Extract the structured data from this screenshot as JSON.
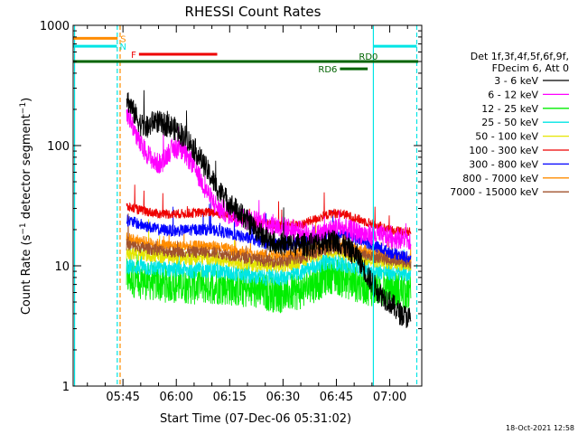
{
  "chart_data": {
    "type": "line",
    "title": "RHESSI Count Rates",
    "xlabel": "Start Time (07-Dec-06 05:31:02)",
    "ylabel_main": "Count Rate (s",
    "ylabel_sup1": "−1",
    "ylabel_mid": " detector segment",
    "ylabel_sup2": "−1",
    "ylabel_end": ")",
    "xlim_minutes": [
      331.0,
      429.0
    ],
    "ylim": [
      1,
      1000
    ],
    "yscale": "log",
    "x_ticks": [
      {
        "minute": 345,
        "label": "05:45"
      },
      {
        "minute": 360,
        "label": "06:00"
      },
      {
        "minute": 375,
        "label": "06:15"
      },
      {
        "minute": 390,
        "label": "06:30"
      },
      {
        "minute": 405,
        "label": "06:45"
      },
      {
        "minute": 420,
        "label": "07:00"
      }
    ],
    "y_ticks": [
      {
        "value": 1,
        "label": "1"
      },
      {
        "value": 10,
        "label": "10"
      },
      {
        "value": 100,
        "label": "100"
      },
      {
        "value": 1000,
        "label": "1000"
      }
    ],
    "legend": {
      "placement": "right",
      "header": [
        "Det 1f,3f,4f,5f,6f,9f,",
        "FDecim 6, Att 0"
      ],
      "entries": [
        {
          "label": "3 - 6 keV",
          "color": "#000000"
        },
        {
          "label": "6 - 12 keV",
          "color": "#ff00ff"
        },
        {
          "label": "12 - 25 keV",
          "color": "#00ee00"
        },
        {
          "label": "25 - 50 keV",
          "color": "#00e5e5"
        },
        {
          "label": "50 - 100 keV",
          "color": "#e5e500"
        },
        {
          "label": "100 - 300 keV",
          "color": "#ee0000"
        },
        {
          "label": "300 - 800 keV",
          "color": "#0000ff"
        },
        {
          "label": "800 - 7000 keV",
          "color": "#ff8c00"
        },
        {
          "label": "7000 - 15000 keV",
          "color": "#a0522d"
        }
      ]
    },
    "series": [
      {
        "name": "3 - 6 keV",
        "color": "#000000",
        "noise": 0.1,
        "points": [
          [
            346,
            250
          ],
          [
            348,
            190
          ],
          [
            350,
            150
          ],
          [
            352,
            140
          ],
          [
            354,
            165
          ],
          [
            356,
            150
          ],
          [
            358,
            148
          ],
          [
            360,
            135
          ],
          [
            363,
            115
          ],
          [
            366,
            85
          ],
          [
            369,
            60
          ],
          [
            372,
            42
          ],
          [
            375,
            33
          ],
          [
            378,
            27
          ],
          [
            381,
            22
          ],
          [
            384,
            18
          ],
          [
            387,
            16
          ],
          [
            390,
            15
          ],
          [
            393,
            15
          ],
          [
            396,
            15
          ],
          [
            399,
            15
          ],
          [
            402,
            16
          ],
          [
            405,
            16
          ],
          [
            408,
            14
          ],
          [
            411,
            12
          ],
          [
            414,
            8
          ],
          [
            417,
            6
          ],
          [
            420,
            5
          ],
          [
            423,
            4
          ],
          [
            426,
            3.6
          ]
        ]
      },
      {
        "name": "6 - 12 keV",
        "color": "#ff00ff",
        "noise": 0.09,
        "points": [
          [
            346,
            195
          ],
          [
            348,
            140
          ],
          [
            350,
            100
          ],
          [
            352,
            85
          ],
          [
            354,
            72
          ],
          [
            356,
            70
          ],
          [
            357,
            80
          ],
          [
            358,
            90
          ],
          [
            360,
            95
          ],
          [
            362,
            88
          ],
          [
            364,
            75
          ],
          [
            366,
            58
          ],
          [
            368,
            45
          ],
          [
            370,
            35
          ],
          [
            372,
            30
          ],
          [
            375,
            27
          ],
          [
            378,
            25
          ],
          [
            381,
            24
          ],
          [
            384,
            23
          ],
          [
            387,
            22
          ],
          [
            390,
            21
          ],
          [
            393,
            20
          ],
          [
            396,
            19
          ],
          [
            399,
            18
          ],
          [
            402,
            19
          ],
          [
            405,
            21
          ],
          [
            408,
            20
          ],
          [
            411,
            19
          ],
          [
            414,
            18
          ],
          [
            417,
            18
          ],
          [
            420,
            17
          ],
          [
            423,
            17
          ],
          [
            426,
            16.5
          ]
        ]
      },
      {
        "name": "12 - 25 keV",
        "color": "#00ee00",
        "noise": 0.16,
        "points": [
          [
            346,
            8.0
          ],
          [
            350,
            7.6
          ],
          [
            355,
            7.2
          ],
          [
            360,
            7.0
          ],
          [
            365,
            6.8
          ],
          [
            370,
            6.9
          ],
          [
            375,
            6.7
          ],
          [
            380,
            6.3
          ],
          [
            385,
            6.0
          ],
          [
            390,
            5.8
          ],
          [
            395,
            6.2
          ],
          [
            400,
            7.4
          ],
          [
            403,
            8.5
          ],
          [
            406,
            8.0
          ],
          [
            410,
            7.2
          ],
          [
            415,
            6.6
          ],
          [
            420,
            6.4
          ],
          [
            426,
            6.0
          ]
        ]
      },
      {
        "name": "25 - 50 keV",
        "color": "#00e5e5",
        "noise": 0.07,
        "points": [
          [
            346,
            10.0
          ],
          [
            350,
            9.7
          ],
          [
            355,
            9.5
          ],
          [
            360,
            9.3
          ],
          [
            365,
            9.2
          ],
          [
            370,
            9.3
          ],
          [
            375,
            8.8
          ],
          [
            380,
            8.3
          ],
          [
            385,
            8.0
          ],
          [
            390,
            8.0
          ],
          [
            395,
            8.8
          ],
          [
            400,
            10.2
          ],
          [
            403,
            11.0
          ],
          [
            406,
            10.5
          ],
          [
            410,
            9.8
          ],
          [
            415,
            9.2
          ],
          [
            420,
            8.8
          ],
          [
            426,
            8.5
          ]
        ]
      },
      {
        "name": "50 - 100 keV",
        "color": "#e5e500",
        "noise": 0.06,
        "points": [
          [
            346,
            13.0
          ],
          [
            350,
            12.5
          ],
          [
            355,
            12.0
          ],
          [
            360,
            11.7
          ],
          [
            365,
            11.6
          ],
          [
            370,
            11.7
          ],
          [
            375,
            11.0
          ],
          [
            380,
            10.4
          ],
          [
            385,
            10.0
          ],
          [
            390,
            10.0
          ],
          [
            395,
            11.0
          ],
          [
            400,
            12.5
          ],
          [
            403,
            13.4
          ],
          [
            406,
            12.8
          ],
          [
            410,
            12.0
          ],
          [
            415,
            11.2
          ],
          [
            420,
            10.6
          ],
          [
            426,
            10.2
          ]
        ]
      },
      {
        "name": "100 - 300 keV",
        "color": "#ee0000",
        "noise": 0.04,
        "points": [
          [
            346,
            31
          ],
          [
            350,
            29
          ],
          [
            355,
            27
          ],
          [
            360,
            27
          ],
          [
            365,
            27.5
          ],
          [
            370,
            28
          ],
          [
            375,
            26
          ],
          [
            380,
            24
          ],
          [
            385,
            22.5
          ],
          [
            390,
            21.5
          ],
          [
            395,
            22
          ],
          [
            400,
            25
          ],
          [
            404,
            27.5
          ],
          [
            407,
            27
          ],
          [
            410,
            25
          ],
          [
            415,
            22.5
          ],
          [
            420,
            20
          ],
          [
            426,
            19
          ]
        ]
      },
      {
        "name": "300 - 800 keV",
        "color": "#0000ff",
        "noise": 0.05,
        "points": [
          [
            346,
            24
          ],
          [
            350,
            22
          ],
          [
            355,
            20
          ],
          [
            360,
            19.5
          ],
          [
            365,
            20
          ],
          [
            370,
            20
          ],
          [
            375,
            18.5
          ],
          [
            380,
            17
          ],
          [
            385,
            15.5
          ],
          [
            390,
            15
          ],
          [
            395,
            15.5
          ],
          [
            400,
            17.5
          ],
          [
            404,
            19
          ],
          [
            407,
            18.5
          ],
          [
            410,
            17
          ],
          [
            415,
            15
          ],
          [
            420,
            13
          ],
          [
            426,
            11.5
          ]
        ]
      },
      {
        "name": "800 - 7000 keV",
        "color": "#ff8c00",
        "noise": 0.05,
        "points": [
          [
            346,
            17
          ],
          [
            350,
            16
          ],
          [
            355,
            15
          ],
          [
            360,
            14.5
          ],
          [
            365,
            14.5
          ],
          [
            370,
            14.6
          ],
          [
            375,
            13.6
          ],
          [
            380,
            12.8
          ],
          [
            385,
            12.2
          ],
          [
            390,
            12.0
          ],
          [
            395,
            12.8
          ],
          [
            400,
            14.5
          ],
          [
            404,
            15.6
          ],
          [
            407,
            15
          ],
          [
            410,
            14
          ],
          [
            415,
            13
          ],
          [
            420,
            12.2
          ],
          [
            426,
            11.5
          ]
        ]
      },
      {
        "name": "7000 - 15000 keV",
        "color": "#a0522d",
        "noise": 0.05,
        "points": [
          [
            346,
            15
          ],
          [
            350,
            14.2
          ],
          [
            355,
            13.5
          ],
          [
            360,
            13.0
          ],
          [
            365,
            13.0
          ],
          [
            370,
            13.1
          ],
          [
            375,
            12.3
          ],
          [
            380,
            11.6
          ],
          [
            385,
            11.0
          ],
          [
            390,
            10.8
          ],
          [
            395,
            11.6
          ],
          [
            400,
            13.2
          ],
          [
            404,
            14.1
          ],
          [
            407,
            13.6
          ],
          [
            410,
            12.8
          ],
          [
            415,
            11.9
          ],
          [
            420,
            11.2
          ],
          [
            426,
            10.6
          ]
        ]
      }
    ],
    "vertical_markers": [
      {
        "minute": 331.4,
        "color": "#00e5e5",
        "style": "solid"
      },
      {
        "minute": 343.4,
        "color": "#00e5e5",
        "style": "dashed"
      },
      {
        "minute": 344.2,
        "color": "#ff8c00",
        "style": "dashed"
      },
      {
        "minute": 415.4,
        "color": "#00e5e5",
        "style": "solid"
      },
      {
        "minute": 427.6,
        "color": "#00e5e5",
        "style": "dashed"
      }
    ],
    "flag_bars": [
      {
        "label": "S",
        "color": "#ff8c00",
        "from": 331.0,
        "to": 343.5,
        "value": 780,
        "label_side": "right"
      },
      {
        "label": "N",
        "color": "#00e5e5",
        "from": 331.0,
        "to": 343.3,
        "value": 670,
        "label_side": "right"
      },
      {
        "label": "N2",
        "text": "",
        "color": "#00e5e5",
        "from": 415.4,
        "to": 427.6,
        "value": 670,
        "label_side": "none"
      },
      {
        "label": "F",
        "color": "#ee0000",
        "from": 349.5,
        "to": 371.5,
        "value": 575,
        "label_side": "left"
      },
      {
        "label": "RD6",
        "color": "#006400",
        "from": 406.0,
        "to": 413.8,
        "value": 435,
        "label_side": "left"
      },
      {
        "label": "RD0",
        "color": "#006400",
        "from": 331.0,
        "to": 428.0,
        "value": 500,
        "label_side": "text-at",
        "text_minute": 414.0
      }
    ],
    "timestamp": "18-Oct-2021 12:58"
  }
}
